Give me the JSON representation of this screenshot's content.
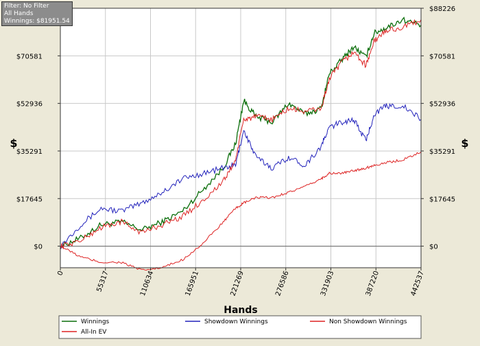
{
  "info": {
    "filter": "Filter: No Filter",
    "hands": "All Hands",
    "winnings": "Winnings: $81951.54"
  },
  "colors": {
    "winnings": "#0a6e0a",
    "showdown": "#2222bb",
    "non_showdown": "#dd2222",
    "all_in_ev": "#dd2222",
    "background": "#ffffff",
    "frame": "#ece9d8"
  },
  "chart_data": {
    "type": "line",
    "xlabel": "Hands",
    "ylabel": "$",
    "xlim": [
      0,
      442537
    ],
    "ylim": [
      -8000,
      88226
    ],
    "x_ticks": [
      0,
      55317,
      110634,
      165951,
      221269,
      276586,
      331903,
      387220,
      442537
    ],
    "x_tick_labels": [
      "0",
      "55317",
      "110634",
      "165951",
      "221269",
      "276586",
      "331903",
      "387220",
      "442537"
    ],
    "y_ticks": [
      0,
      17645,
      35291,
      52936,
      70581,
      88226
    ],
    "y_tick_labels": [
      "$0",
      "$17645",
      "$35291",
      "$52936",
      "$70581",
      "$88226"
    ],
    "grid": true,
    "legend_position": "bottom",
    "x": [
      0,
      25000,
      50000,
      75000,
      100000,
      125000,
      150000,
      175000,
      200000,
      215000,
      225000,
      240000,
      260000,
      280000,
      300000,
      320000,
      330000,
      345000,
      360000,
      375000,
      385000,
      400000,
      420000,
      442537
    ],
    "series": [
      {
        "name": "Winnings",
        "values": [
          0,
          3000,
          8000,
          9000,
          6000,
          9000,
          13000,
          21000,
          29000,
          38000,
          54000,
          48000,
          46000,
          53000,
          49000,
          51000,
          64000,
          69000,
          74000,
          70000,
          79000,
          81000,
          84000,
          82000
        ]
      },
      {
        "name": "Showdown Winnings",
        "values": [
          0,
          8000,
          14000,
          13000,
          16000,
          20000,
          25000,
          27000,
          29000,
          30000,
          43000,
          33000,
          29000,
          33000,
          30000,
          37000,
          44000,
          46000,
          47000,
          39000,
          49000,
          52000,
          52000,
          47000
        ]
      },
      {
        "name": "Non Showdown Winnings",
        "values": [
          0,
          2000,
          7000,
          9000,
          5000,
          8000,
          11000,
          17000,
          24000,
          32000,
          47000,
          48000,
          47000,
          51000,
          50000,
          51000,
          62000,
          68000,
          72000,
          67000,
          76000,
          80000,
          81000,
          84000
        ]
      },
      {
        "name": "All-In EV",
        "values": [
          0,
          -4000,
          -6000,
          -6000,
          -9000,
          -8000,
          -5000,
          1000,
          9000,
          14000,
          16000,
          18000,
          18000,
          20000,
          22000,
          25000,
          27000,
          27000,
          28000,
          29000,
          30000,
          31000,
          32000,
          35000
        ]
      }
    ]
  }
}
